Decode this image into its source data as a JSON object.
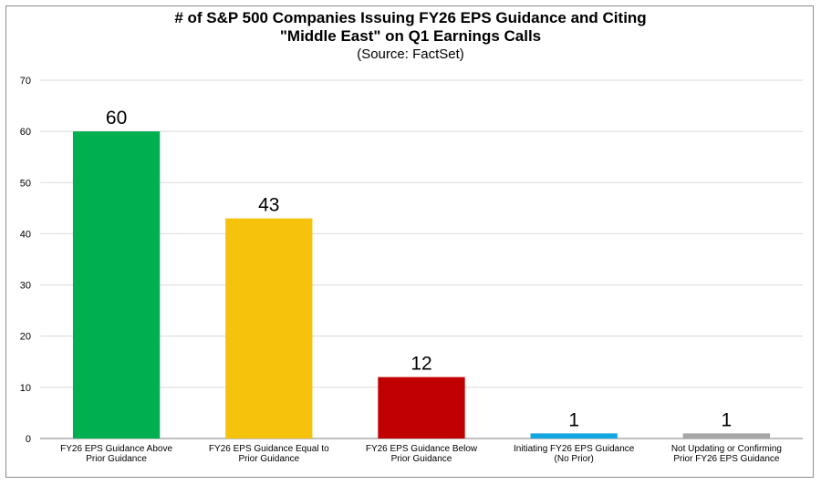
{
  "chart_data": {
    "type": "bar",
    "title_lines": [
      "# of S&P 500 Companies Issuing FY26 EPS Guidance and Citing",
      "\"Middle East\" on Q1 Earnings Calls"
    ],
    "subtitle": "(Source: FactSet)",
    "categories": [
      [
        "FY26 EPS Guidance Above",
        "Prior Guidance"
      ],
      [
        "FY26 EPS Guidance Equal to",
        "Prior Guidance"
      ],
      [
        "FY26 EPS Guidance Below",
        "Prior Guidance"
      ],
      [
        "Initiating FY26 EPS Guidance",
        "(No Prior)"
      ],
      [
        "Not Updating or Confirming",
        "Prior FY26 EPS Guidance"
      ]
    ],
    "values": [
      60,
      43,
      12,
      1,
      1
    ],
    "colors": [
      "#00b050",
      "#f6c30c",
      "#c00000",
      "#12a7e0",
      "#a6a6a6"
    ],
    "ylim": [
      0,
      70
    ],
    "yticks": [
      0,
      10,
      20,
      30,
      40,
      50,
      60,
      70
    ],
    "grid": true,
    "xlabel": "",
    "ylabel": ""
  }
}
